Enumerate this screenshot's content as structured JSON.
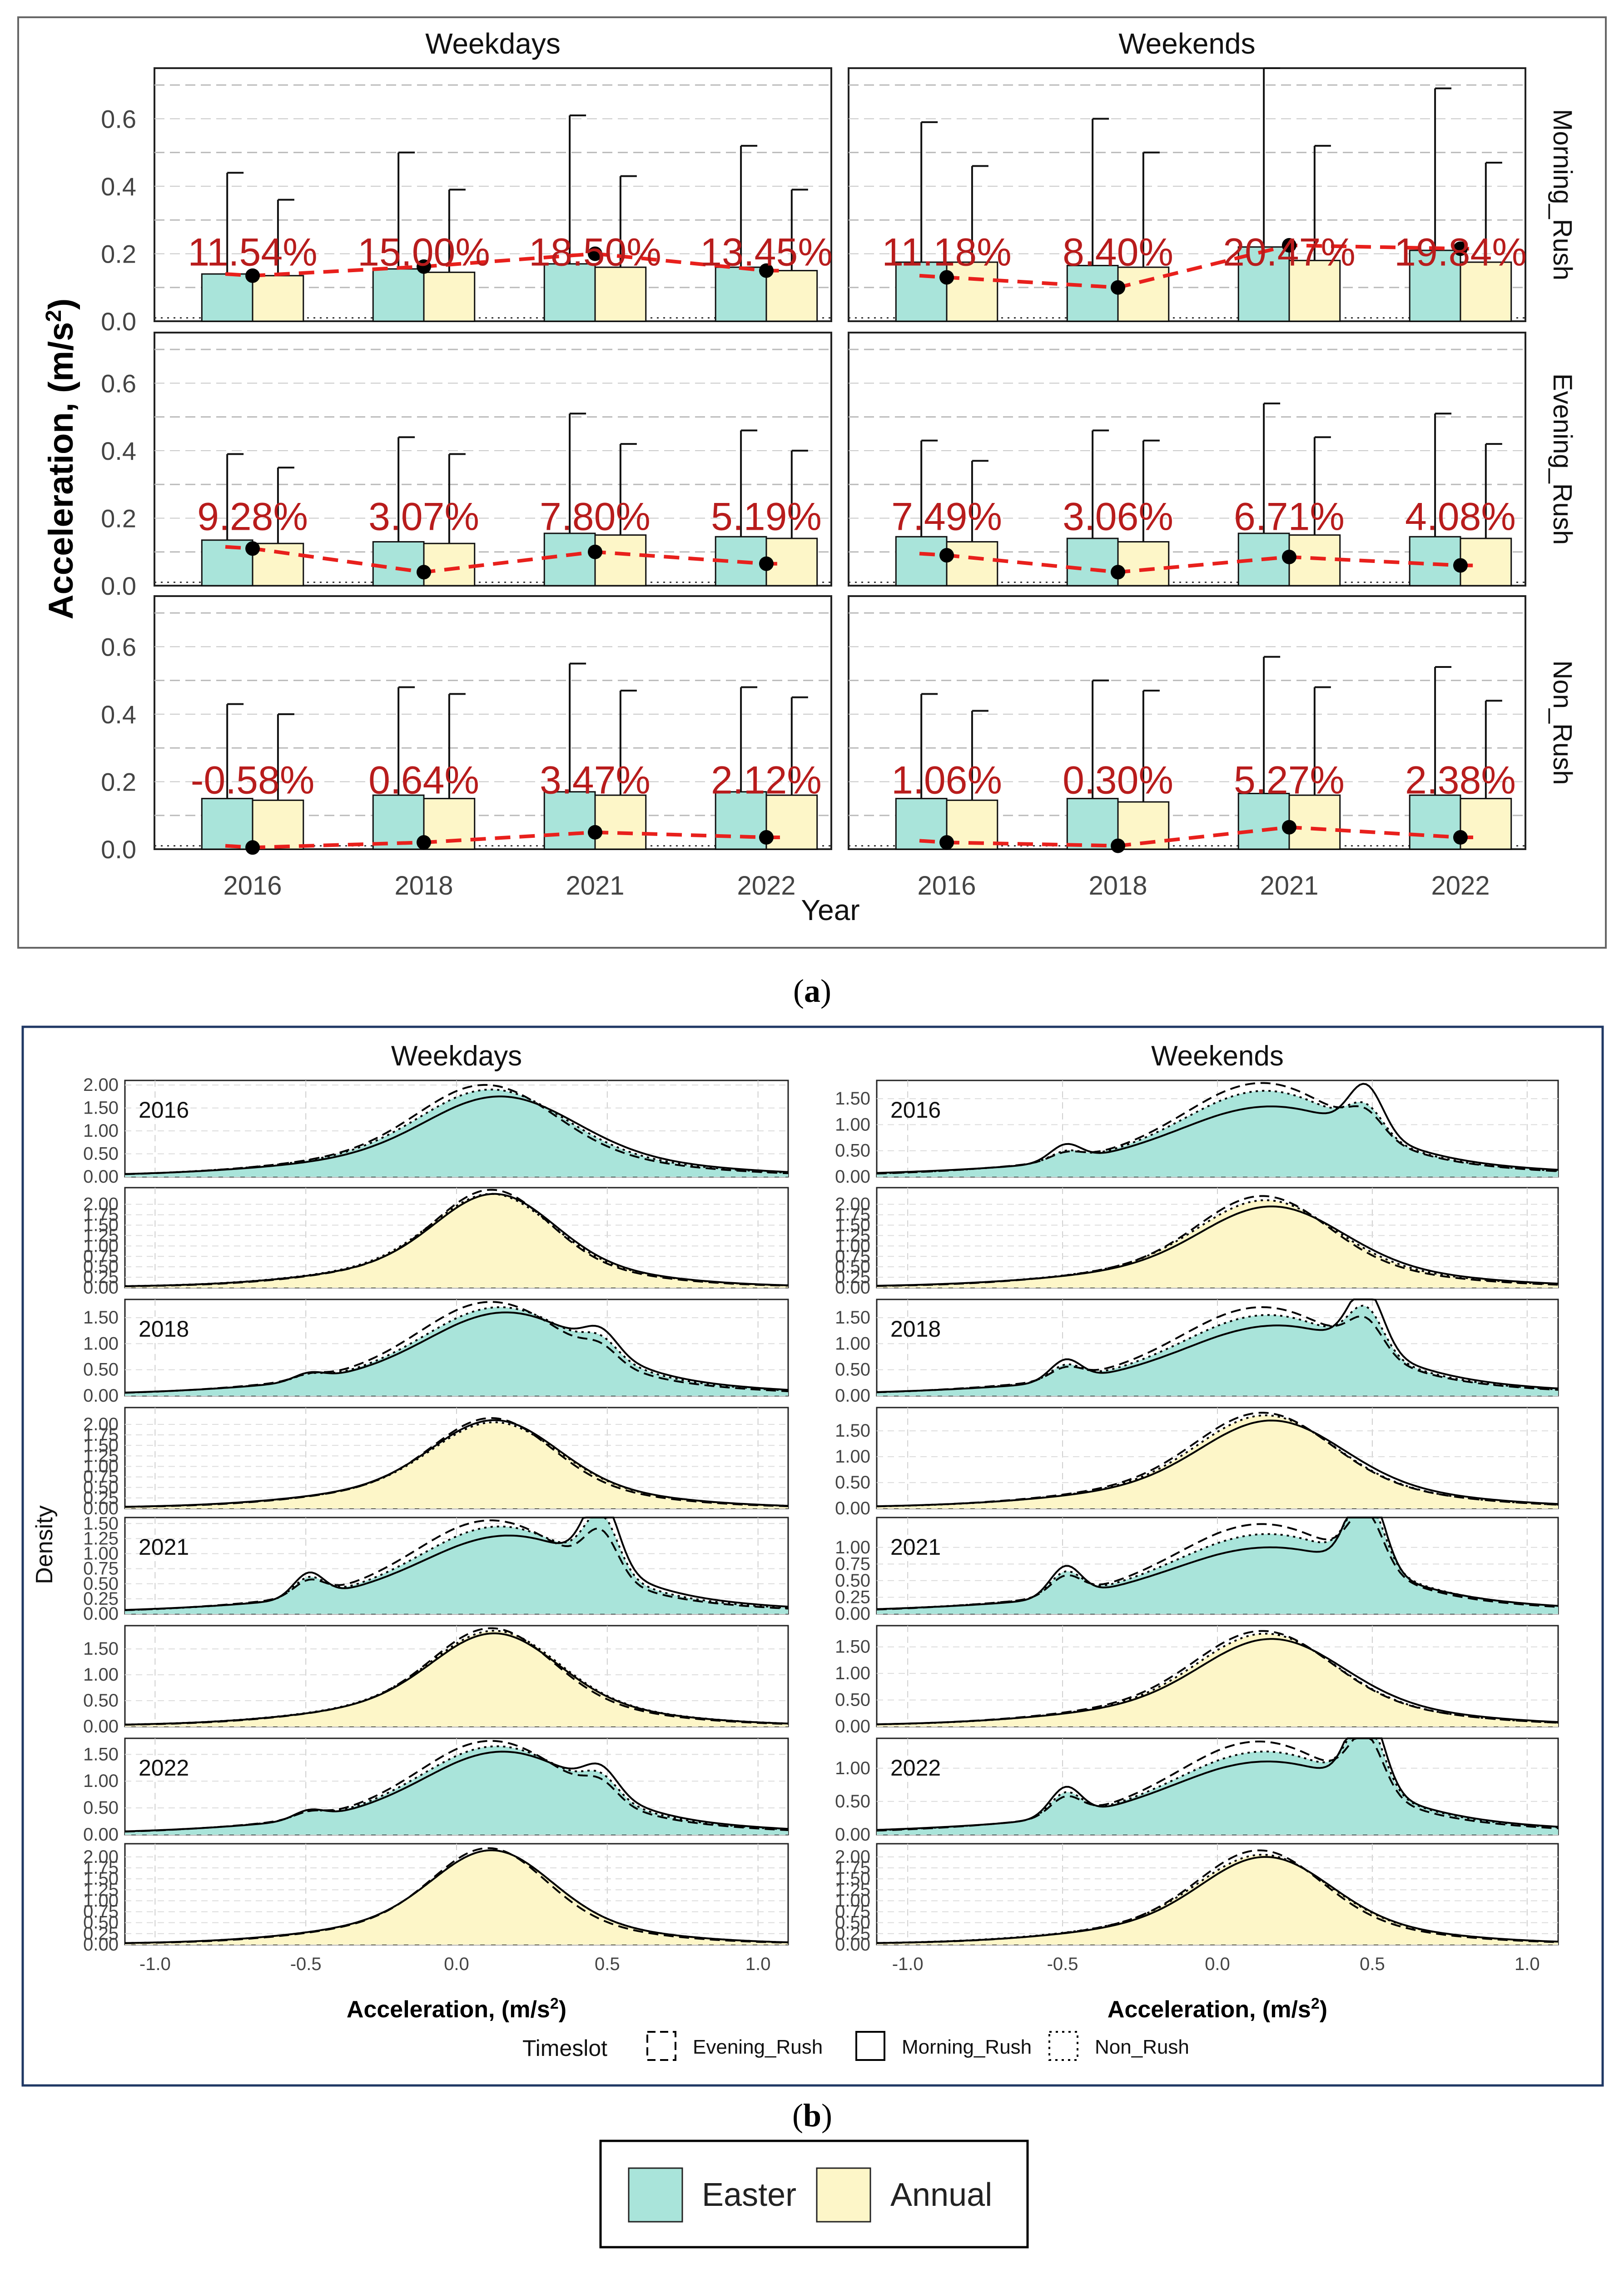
{
  "figure": {
    "caption_a": "a",
    "caption_b": "b",
    "legend": {
      "easter_label": "Easter",
      "annual_label": "Annual",
      "easter_color": "#a9e4da",
      "annual_color": "#fdf6c8"
    },
    "colors": {
      "trend_line": "#e8201c",
      "percent_label": "#b81c1c",
      "point": "#000000"
    }
  },
  "chart_data": [
    {
      "id": "a",
      "type": "bar",
      "title": "",
      "xlabel": "Year",
      "ylabel_main": "Acceleration, (m/s",
      "ylabel_sup": "2",
      "ylabel_tail": ")",
      "ylim": [
        0,
        0.75
      ],
      "yticks": [
        "0.0",
        "0.2",
        "0.4",
        "0.6"
      ],
      "grid": true,
      "categories": [
        "2016",
        "2018",
        "2021",
        "2022"
      ],
      "columns": [
        "Weekdays",
        "Weekends"
      ],
      "rows": [
        "Morning_Rush",
        "Evening_Rush",
        "Non_Rush"
      ],
      "panels": [
        {
          "column": "Weekdays",
          "row": "Morning_Rush",
          "easter": [
            0.14,
            0.155,
            0.17,
            0.16
          ],
          "easter_err": [
            0.44,
            0.5,
            0.61,
            0.52
          ],
          "annual": [
            0.135,
            0.145,
            0.16,
            0.15
          ],
          "annual_err": [
            0.36,
            0.39,
            0.43,
            0.39
          ],
          "diff": [
            0.135,
            0.162,
            0.2,
            0.15
          ],
          "labels": [
            "11.54%",
            "15.00%",
            "18.50%",
            "13.45%"
          ]
        },
        {
          "column": "Weekends",
          "row": "Morning_Rush",
          "easter": [
            0.175,
            0.165,
            0.22,
            0.21
          ],
          "easter_err": [
            0.59,
            0.6,
            0.75,
            0.69
          ],
          "annual": [
            0.175,
            0.16,
            0.18,
            0.175
          ],
          "annual_err": [
            0.46,
            0.5,
            0.52,
            0.47
          ],
          "diff": [
            0.13,
            0.1,
            0.225,
            0.215
          ],
          "labels": [
            "11.18%",
            "8.40%",
            "20.47%",
            "19.84%"
          ]
        },
        {
          "column": "Weekdays",
          "row": "Evening_Rush",
          "easter": [
            0.135,
            0.13,
            0.155,
            0.145
          ],
          "easter_err": [
            0.39,
            0.44,
            0.51,
            0.46
          ],
          "annual": [
            0.125,
            0.125,
            0.15,
            0.14
          ],
          "annual_err": [
            0.35,
            0.39,
            0.42,
            0.4
          ],
          "diff": [
            0.11,
            0.04,
            0.1,
            0.065
          ],
          "labels": [
            "9.28%",
            "3.07%",
            "7.80%",
            "5.19%"
          ]
        },
        {
          "column": "Weekends",
          "row": "Evening_Rush",
          "easter": [
            0.145,
            0.14,
            0.155,
            0.145
          ],
          "easter_err": [
            0.43,
            0.46,
            0.54,
            0.51
          ],
          "annual": [
            0.13,
            0.13,
            0.15,
            0.14
          ],
          "annual_err": [
            0.37,
            0.43,
            0.44,
            0.42
          ],
          "diff": [
            0.09,
            0.04,
            0.085,
            0.06
          ],
          "labels": [
            "7.49%",
            "3.06%",
            "6.71%",
            "4.08%"
          ]
        },
        {
          "column": "Weekdays",
          "row": "Non_Rush",
          "easter": [
            0.15,
            0.16,
            0.17,
            0.17
          ],
          "easter_err": [
            0.43,
            0.48,
            0.55,
            0.48
          ],
          "annual": [
            0.145,
            0.15,
            0.16,
            0.16
          ],
          "annual_err": [
            0.4,
            0.46,
            0.47,
            0.45
          ],
          "diff": [
            0.005,
            0.02,
            0.05,
            0.035
          ],
          "labels": [
            "-0.58%",
            "0.64%",
            "3.47%",
            "2.12%"
          ]
        },
        {
          "column": "Weekends",
          "row": "Non_Rush",
          "easter": [
            0.15,
            0.15,
            0.165,
            0.16
          ],
          "easter_err": [
            0.46,
            0.5,
            0.57,
            0.54
          ],
          "annual": [
            0.145,
            0.14,
            0.16,
            0.15
          ],
          "annual_err": [
            0.41,
            0.47,
            0.48,
            0.44
          ],
          "diff": [
            0.02,
            0.01,
            0.065,
            0.035
          ],
          "labels": [
            "1.06%",
            "0.30%",
            "5.27%",
            "2.38%"
          ]
        }
      ]
    },
    {
      "id": "b",
      "type": "area",
      "title": "",
      "xlabel_main": "Acceleration, (m/s",
      "xlabel_sup": "2",
      "xlabel_tail": ")",
      "ylabel": "Density",
      "xlim": [
        -1.1,
        1.1
      ],
      "xticks": [
        "-1.0",
        "-0.5",
        "0.0",
        "0.5",
        "1.0"
      ],
      "columns": [
        "Weekdays",
        "Weekends"
      ],
      "years": [
        "2016",
        "2018",
        "2021",
        "2022"
      ],
      "legend": {
        "title": "Timeslot",
        "items": [
          "Evening_Rush",
          "Morning_Rush",
          "Non_Rush"
        ]
      },
      "panels": [
        {
          "column": "Weekdays",
          "year": "2016",
          "series": "Easter",
          "ymax": 2.1,
          "yticks": [
            "0.00",
            "0.50",
            "1.00",
            "1.50",
            "2.00"
          ],
          "morning": {
            "peak": 1.7,
            "center": 0.15,
            "width": 0.24,
            "bump": 0.0
          },
          "evening": {
            "peak": 1.95,
            "center": 0.1,
            "width": 0.22,
            "bump": 0.0
          },
          "non_rush": {
            "peak": 1.85,
            "center": 0.12,
            "width": 0.23,
            "bump": 0.0
          }
        },
        {
          "column": "Weekdays",
          "year": "2016",
          "series": "Annual",
          "ymax": 2.4,
          "yticks": [
            "0.00",
            "0.25",
            "0.50",
            "0.75",
            "1.00",
            "1.25",
            "1.50",
            "1.75",
            "2.00"
          ],
          "morning": {
            "peak": 2.2,
            "center": 0.13,
            "width": 0.19,
            "bump": 0.0
          },
          "evening": {
            "peak": 2.3,
            "center": 0.12,
            "width": 0.18,
            "bump": 0.0
          },
          "non_rush": {
            "peak": 2.2,
            "center": 0.12,
            "width": 0.19,
            "bump": 0.0
          }
        },
        {
          "column": "Weekdays",
          "year": "2018",
          "series": "Easter",
          "ymax": 1.85,
          "yticks": [
            "0.00",
            "0.50",
            "1.00",
            "1.50"
          ],
          "morning": {
            "peak": 1.55,
            "center": 0.17,
            "width": 0.25,
            "bump": 0.4
          },
          "evening": {
            "peak": 1.75,
            "center": 0.12,
            "width": 0.23,
            "bump": 0.25
          },
          "non_rush": {
            "peak": 1.65,
            "center": 0.15,
            "width": 0.24,
            "bump": 0.3
          }
        },
        {
          "column": "Weekdays",
          "year": "2018",
          "series": "Annual",
          "ymax": 2.4,
          "yticks": [
            "0.00",
            "0.25",
            "0.50",
            "0.75",
            "1.00",
            "1.25",
            "1.50",
            "1.75",
            "2.00"
          ],
          "morning": {
            "peak": 2.05,
            "center": 0.13,
            "width": 0.2,
            "bump": 0.0
          },
          "evening": {
            "peak": 2.1,
            "center": 0.12,
            "width": 0.19,
            "bump": 0.0
          },
          "non_rush": {
            "peak": 2.0,
            "center": 0.13,
            "width": 0.2,
            "bump": 0.0
          }
        },
        {
          "column": "Weekdays",
          "year": "2021",
          "series": "Easter",
          "ymax": 1.6,
          "yticks": [
            "0.00",
            "0.25",
            "0.50",
            "0.75",
            "1.00",
            "1.25",
            "1.50"
          ],
          "morning": {
            "peak": 1.25,
            "center": 0.18,
            "width": 0.27,
            "bump": 1.15
          },
          "evening": {
            "peak": 1.5,
            "center": 0.12,
            "width": 0.24,
            "bump": 0.7
          },
          "non_rush": {
            "peak": 1.4,
            "center": 0.15,
            "width": 0.25,
            "bump": 0.9
          }
        },
        {
          "column": "Weekdays",
          "year": "2021",
          "series": "Annual",
          "ymax": 1.95,
          "yticks": [
            "0.00",
            "0.50",
            "1.00",
            "1.50"
          ],
          "morning": {
            "peak": 1.75,
            "center": 0.13,
            "width": 0.2,
            "bump": 0.0
          },
          "evening": {
            "peak": 1.85,
            "center": 0.12,
            "width": 0.19,
            "bump": 0.0
          },
          "non_rush": {
            "peak": 1.8,
            "center": 0.13,
            "width": 0.2,
            "bump": 0.0
          }
        },
        {
          "column": "Weekdays",
          "year": "2022",
          "series": "Easter",
          "ymax": 1.8,
          "yticks": [
            "0.00",
            "0.50",
            "1.00",
            "1.50"
          ],
          "morning": {
            "peak": 1.5,
            "center": 0.16,
            "width": 0.25,
            "bump": 0.45
          },
          "evening": {
            "peak": 1.7,
            "center": 0.12,
            "width": 0.23,
            "bump": 0.3
          },
          "non_rush": {
            "peak": 1.6,
            "center": 0.14,
            "width": 0.24,
            "bump": 0.35
          }
        },
        {
          "column": "Weekdays",
          "year": "2022",
          "series": "Annual",
          "ymax": 2.3,
          "yticks": [
            "0.00",
            "0.25",
            "0.50",
            "0.75",
            "1.00",
            "1.25",
            "1.50",
            "1.75",
            "2.00"
          ],
          "morning": {
            "peak": 2.1,
            "center": 0.12,
            "width": 0.19,
            "bump": 0.0
          },
          "evening": {
            "peak": 2.15,
            "center": 0.11,
            "width": 0.18,
            "bump": 0.0
          },
          "non_rush": {
            "peak": 2.1,
            "center": 0.12,
            "width": 0.19,
            "bump": 0.0
          }
        },
        {
          "column": "Weekends",
          "year": "2016",
          "series": "Easter",
          "ymax": 1.85,
          "yticks": [
            "0.00",
            "0.50",
            "1.00",
            "1.50"
          ],
          "morning": {
            "peak": 1.3,
            "center": 0.18,
            "width": 0.28,
            "bump": 0.9
          },
          "evening": {
            "peak": 1.75,
            "center": 0.15,
            "width": 0.24,
            "bump": 0.4
          },
          "non_rush": {
            "peak": 1.6,
            "center": 0.16,
            "width": 0.25,
            "bump": 0.5
          }
        },
        {
          "column": "Weekends",
          "year": "2016",
          "series": "Annual",
          "ymax": 2.4,
          "yticks": [
            "0.00",
            "0.25",
            "0.50",
            "0.75",
            "1.00",
            "1.25",
            "1.50",
            "1.75",
            "2.00"
          ],
          "morning": {
            "peak": 1.9,
            "center": 0.18,
            "width": 0.22,
            "bump": 0.0
          },
          "evening": {
            "peak": 2.15,
            "center": 0.15,
            "width": 0.2,
            "bump": 0.0
          },
          "non_rush": {
            "peak": 2.05,
            "center": 0.16,
            "width": 0.21,
            "bump": 0.0
          }
        },
        {
          "column": "Weekends",
          "year": "2018",
          "series": "Easter",
          "ymax": 1.85,
          "yticks": [
            "0.00",
            "0.50",
            "1.00",
            "1.50"
          ],
          "morning": {
            "peak": 1.3,
            "center": 0.2,
            "width": 0.28,
            "bump": 1.15
          },
          "evening": {
            "peak": 1.65,
            "center": 0.15,
            "width": 0.25,
            "bump": 0.6
          },
          "non_rush": {
            "peak": 1.5,
            "center": 0.17,
            "width": 0.26,
            "bump": 0.8
          }
        },
        {
          "column": "Weekends",
          "year": "2018",
          "series": "Annual",
          "ymax": 1.95,
          "yticks": [
            "0.00",
            "0.50",
            "1.00",
            "1.50"
          ],
          "morning": {
            "peak": 1.65,
            "center": 0.18,
            "width": 0.22,
            "bump": 0.0
          },
          "evening": {
            "peak": 1.8,
            "center": 0.15,
            "width": 0.21,
            "bump": 0.0
          },
          "non_rush": {
            "peak": 1.75,
            "center": 0.16,
            "width": 0.21,
            "bump": 0.0
          }
        },
        {
          "column": "Weekends",
          "year": "2021",
          "series": "Easter",
          "ymax": 1.45,
          "yticks": [
            "0.00",
            "0.25",
            "0.50",
            "0.75",
            "1.00"
          ],
          "morning": {
            "peak": 0.95,
            "center": 0.18,
            "width": 0.3,
            "bump": 1.3
          },
          "evening": {
            "peak": 1.3,
            "center": 0.15,
            "width": 0.26,
            "bump": 0.8
          },
          "non_rush": {
            "peak": 1.15,
            "center": 0.17,
            "width": 0.28,
            "bump": 1.0
          }
        },
        {
          "column": "Weekends",
          "year": "2021",
          "series": "Annual",
          "ymax": 1.9,
          "yticks": [
            "0.00",
            "0.50",
            "1.00",
            "1.50"
          ],
          "morning": {
            "peak": 1.6,
            "center": 0.18,
            "width": 0.22,
            "bump": 0.0
          },
          "evening": {
            "peak": 1.75,
            "center": 0.15,
            "width": 0.21,
            "bump": 0.0
          },
          "non_rush": {
            "peak": 1.7,
            "center": 0.16,
            "width": 0.21,
            "bump": 0.0
          }
        },
        {
          "column": "Weekends",
          "year": "2022",
          "series": "Easter",
          "ymax": 1.45,
          "yticks": [
            "0.00",
            "0.50",
            "1.00"
          ],
          "morning": {
            "peak": 1.05,
            "center": 0.17,
            "width": 0.29,
            "bump": 1.25
          },
          "evening": {
            "peak": 1.35,
            "center": 0.14,
            "width": 0.25,
            "bump": 0.8
          },
          "non_rush": {
            "peak": 1.2,
            "center": 0.16,
            "width": 0.27,
            "bump": 1.0
          }
        },
        {
          "column": "Weekends",
          "year": "2022",
          "series": "Annual",
          "ymax": 2.3,
          "yticks": [
            "0.00",
            "0.25",
            "0.50",
            "0.75",
            "1.00",
            "1.25",
            "1.50",
            "1.75",
            "2.00"
          ],
          "morning": {
            "peak": 1.95,
            "center": 0.16,
            "width": 0.2,
            "bump": 0.0
          },
          "evening": {
            "peak": 2.1,
            "center": 0.14,
            "width": 0.19,
            "bump": 0.0
          },
          "non_rush": {
            "peak": 2.0,
            "center": 0.15,
            "width": 0.2,
            "bump": 0.0
          }
        }
      ]
    }
  ]
}
